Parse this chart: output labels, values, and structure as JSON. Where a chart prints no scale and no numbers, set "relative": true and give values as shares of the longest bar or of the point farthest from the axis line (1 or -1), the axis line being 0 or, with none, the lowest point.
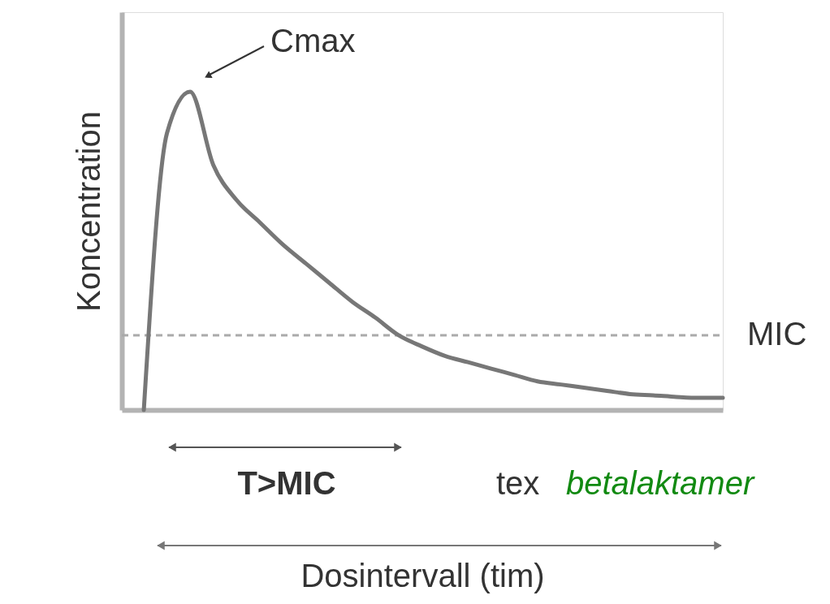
{
  "chart_data": {
    "type": "line",
    "relative": true,
    "xlabel": "Dosintervall (tim)",
    "ylabel": "Koncentration",
    "categories": [
      null,
      null,
      null,
      null,
      null,
      null,
      null,
      null,
      null,
      null,
      null,
      null,
      null,
      null,
      null,
      null,
      null,
      null,
      null,
      null,
      null,
      null,
      null,
      null,
      null,
      null
    ],
    "series": [
      {
        "color": "#777777",
        "values": [
          0,
          0.87,
          1,
          0.77,
          0.66,
          0.59,
          0.52,
          0.46,
          0.4,
          0.34,
          0.29,
          0.235,
          0.2,
          0.17,
          0.15,
          0.13,
          0.11,
          0.09,
          0.08,
          0.07,
          0.06,
          0.05,
          0.046,
          0.041,
          0.038,
          0.038
        ]
      }
    ],
    "ref_lines": [
      {
        "axis": "y",
        "value": 0.235,
        "label": "MIC",
        "color": "#aaaaaa",
        "line_style": "dashed"
      }
    ],
    "annotations": [
      "Cmax",
      "T>MIC",
      "tex betalaktamer"
    ],
    "line_style": "solid",
    "marker": "none",
    "grid": false
  }
}
